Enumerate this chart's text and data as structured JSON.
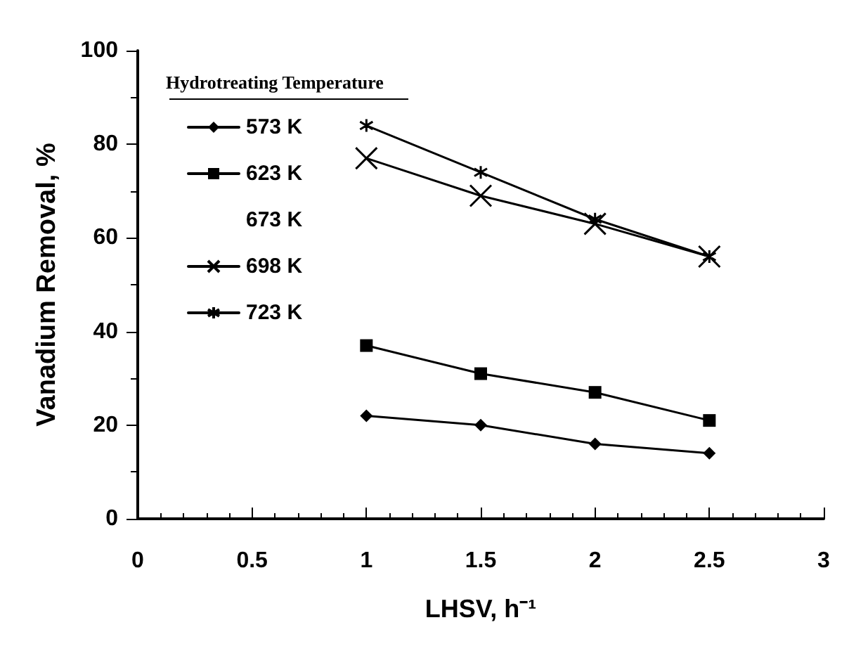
{
  "chart_data": {
    "type": "line",
    "xlabel": "LHSV, h⁻¹",
    "ylabel": "Vanadium Removal, %",
    "legend_title": "Hydrotreating Temperature",
    "x": [
      1,
      1.5,
      2,
      2.5
    ],
    "series": [
      {
        "name": "573 K",
        "color": "#000000",
        "marker": "diamond",
        "values": [
          22,
          20,
          16,
          14
        ]
      },
      {
        "name": "623 K",
        "color": "#000000",
        "marker": "square",
        "values": [
          37,
          31,
          27,
          21
        ]
      },
      {
        "name": "673 K",
        "marker": "none",
        "values": [
          null,
          null,
          null,
          null
        ]
      },
      {
        "name": "698 K",
        "color": "#000000",
        "marker": "cross",
        "values": [
          77,
          69,
          63,
          56
        ]
      },
      {
        "name": "723 K",
        "color": "#000000",
        "marker": "star",
        "values": [
          84,
          74,
          64,
          56
        ]
      }
    ],
    "xlim": [
      0,
      3
    ],
    "xticks": [
      0,
      0.5,
      1,
      1.5,
      2,
      2.5,
      3
    ],
    "ylim": [
      0,
      100
    ],
    "yticks": [
      0,
      20,
      40,
      60,
      80,
      100
    ],
    "grid": false,
    "legend": "top left",
    "line_style": "solid"
  }
}
